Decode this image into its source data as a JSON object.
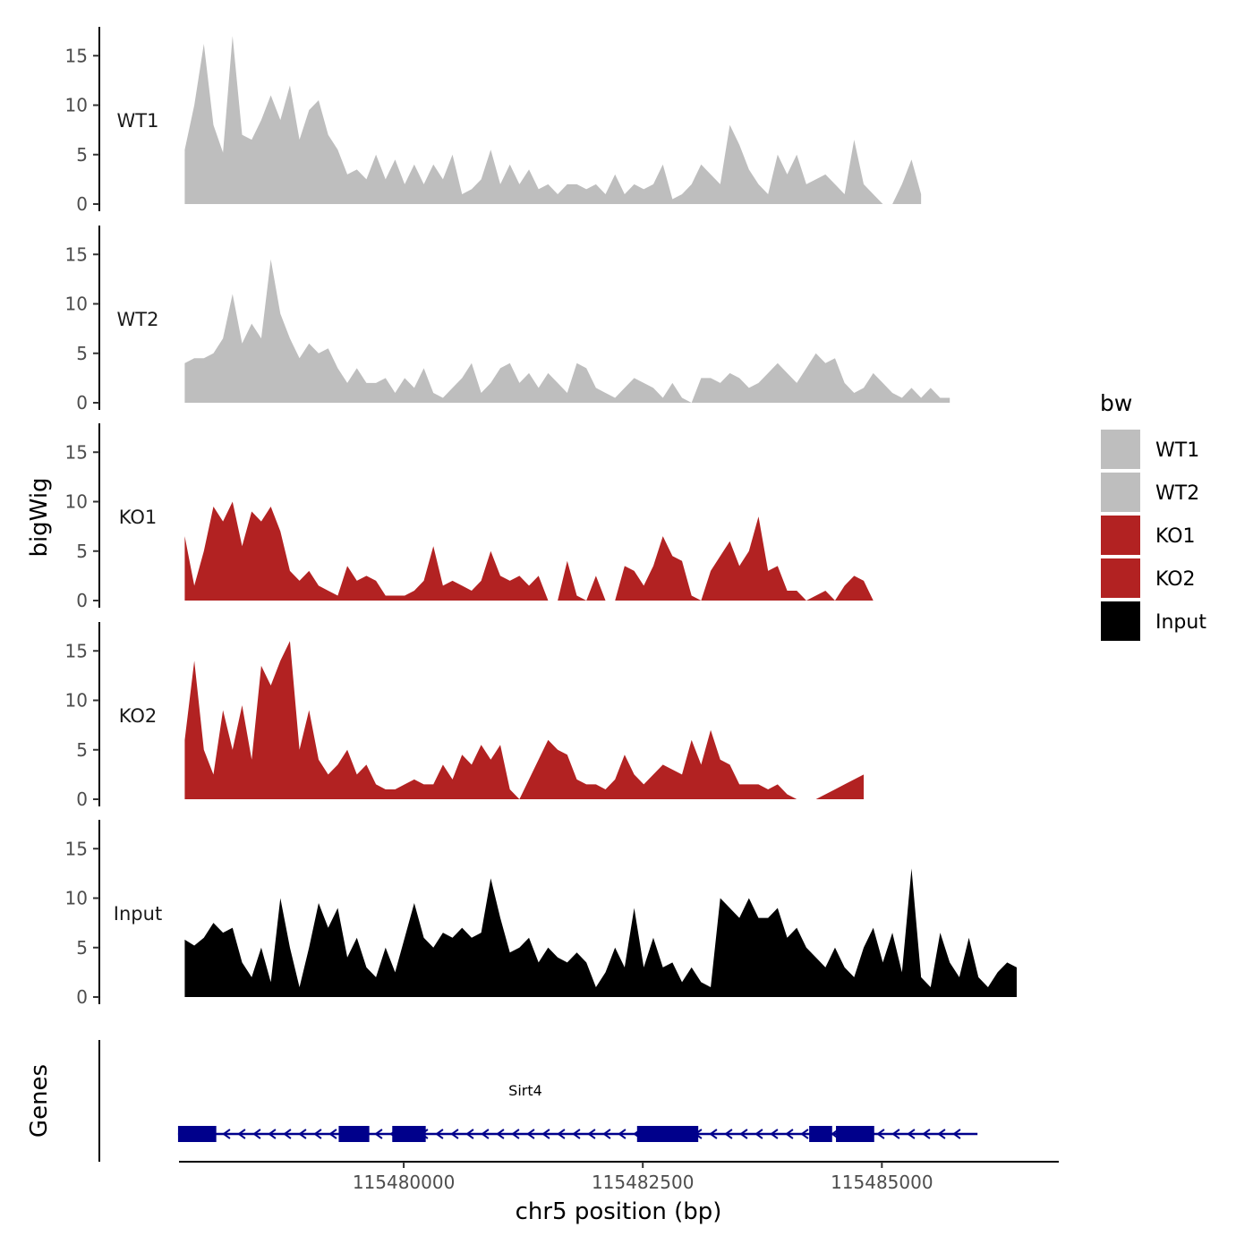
{
  "chart_data": {
    "type": "area",
    "ylabel": "bigWig",
    "xlabel": "chr5 position (bp)",
    "genes_panel_label": "Genes",
    "xlim": [
      115477650,
      115486850
    ],
    "xticks": [
      {
        "value": 115480000,
        "label": "115480000"
      },
      {
        "value": 115482500,
        "label": "115482500"
      },
      {
        "value": 115485000,
        "label": "115485000"
      }
    ],
    "ylim": [
      0,
      18
    ],
    "yticks": [
      {
        "value": 0,
        "label": "0"
      },
      {
        "value": 5,
        "label": "5"
      },
      {
        "value": 10,
        "label": "10"
      },
      {
        "value": 15,
        "label": "15"
      }
    ],
    "x_start": 115477710,
    "x_step": 100,
    "series": [
      {
        "name": "WT1",
        "color": "#bebebe",
        "values": [
          5.5,
          10,
          16.2,
          8,
          5.2,
          17,
          7,
          6.5,
          8.5,
          11,
          8.5,
          12,
          6.5,
          9.5,
          10.5,
          7,
          5.5,
          3,
          3.5,
          2.5,
          5,
          2.5,
          4.5,
          2,
          4,
          2,
          4,
          2.5,
          5,
          1,
          1.5,
          2.5,
          5.5,
          2,
          4,
          2,
          3.5,
          1.5,
          2,
          1,
          2,
          2,
          1.5,
          2,
          1,
          3,
          1,
          2,
          1.5,
          2,
          4,
          0.5,
          1,
          2,
          4,
          3,
          2,
          8,
          6,
          3.5,
          2,
          1,
          5,
          3,
          5,
          2,
          2.5,
          3,
          2,
          1,
          6.5,
          2,
          1,
          0,
          0,
          2,
          4.5,
          1
        ]
      },
      {
        "name": "WT2",
        "color": "#bebebe",
        "values": [
          4,
          4.5,
          4.5,
          5,
          6.5,
          11,
          6,
          8,
          6.5,
          14.5,
          9,
          6.5,
          4.5,
          6,
          5,
          5.5,
          3.5,
          2,
          3.5,
          2,
          2,
          2.5,
          1,
          2.5,
          1.5,
          3.5,
          1,
          0.5,
          1.5,
          2.5,
          4,
          1,
          2,
          3.5,
          4,
          2,
          3,
          1.5,
          3,
          2,
          1,
          4,
          3.5,
          1.5,
          1,
          0.5,
          1.5,
          2.5,
          2,
          1.5,
          0.5,
          2,
          0.5,
          0,
          2.5,
          2.5,
          2,
          3,
          2.5,
          1.5,
          2,
          3,
          4,
          3,
          2,
          3.5,
          5,
          4,
          4.5,
          2,
          1,
          1.5,
          3,
          2,
          1,
          0.5,
          1.5,
          0.5,
          1.5,
          0.5,
          0.5
        ]
      },
      {
        "name": "KO1",
        "color": "#b22222",
        "values": [
          6.5,
          1.5,
          5,
          9.5,
          8,
          10,
          5.5,
          9,
          8,
          9.5,
          7,
          3,
          2,
          3,
          1.5,
          1,
          0.5,
          3.5,
          2,
          2.5,
          2,
          0.5,
          0.5,
          0.5,
          1,
          2,
          5.5,
          1.5,
          2,
          1.5,
          1,
          2,
          5,
          2.5,
          2,
          2.5,
          1.5,
          2.5,
          0,
          0,
          4,
          0.5,
          0,
          2.5,
          0,
          0,
          3.5,
          3,
          1.5,
          3.5,
          6.5,
          4.5,
          4,
          0.5,
          0,
          3,
          4.5,
          6,
          3.5,
          5,
          8.5,
          3,
          3.5,
          1,
          1,
          0,
          0.5,
          1,
          0,
          1.5,
          2.5,
          2,
          0,
          0,
          0,
          0
        ]
      },
      {
        "name": "KO2",
        "color": "#b22222",
        "values": [
          6,
          14,
          5,
          2.5,
          9,
          5,
          9.5,
          4,
          13.5,
          11.5,
          14,
          16,
          5,
          9,
          4,
          2.5,
          3.5,
          5,
          2.5,
          3.5,
          1.5,
          1,
          1,
          1.5,
          2,
          1.5,
          1.5,
          3.5,
          2,
          4.5,
          3.5,
          5.5,
          4,
          5.5,
          1,
          0,
          2,
          4,
          6,
          5,
          4.5,
          2,
          1.5,
          1.5,
          1,
          2,
          4.5,
          2.5,
          1.5,
          2.5,
          3.5,
          3,
          2.5,
          6,
          3.5,
          7,
          4,
          3.5,
          1.5,
          1.5,
          1.5,
          1,
          1.5,
          0.5,
          0,
          0,
          0,
          0.5,
          1,
          1.5,
          2,
          2.5
        ]
      },
      {
        "name": "Input",
        "color": "#000000",
        "values": [
          5.8,
          5.2,
          6,
          7.5,
          6.5,
          7,
          3.5,
          2,
          5,
          1.5,
          10,
          5,
          1,
          5,
          9.5,
          7,
          9,
          4,
          6,
          3,
          2,
          5,
          2.5,
          6,
          9.5,
          6,
          5,
          6.5,
          6,
          7,
          6,
          6.5,
          12,
          8,
          4.5,
          5,
          6,
          3.5,
          5,
          4,
          3.5,
          4.5,
          3.5,
          1,
          2.5,
          5,
          3,
          9,
          3,
          6,
          3,
          3.5,
          1.5,
          3,
          1.5,
          1,
          10,
          9,
          8,
          10,
          8,
          8,
          9,
          6,
          7,
          5,
          4,
          3,
          5,
          3,
          2,
          5,
          7,
          3.5,
          6.5,
          2.5,
          13,
          2,
          1,
          6.5,
          3.5,
          2,
          6,
          2,
          1,
          2.5,
          3.5,
          3
        ]
      }
    ],
    "legend": {
      "title": "bw",
      "position": "right",
      "entries": [
        {
          "label": "WT1",
          "color": "#bebebe"
        },
        {
          "label": "WT2",
          "color": "#bebebe"
        },
        {
          "label": "KO1",
          "color": "#b22222"
        },
        {
          "label": "KO2",
          "color": "#b22222"
        },
        {
          "label": "Input",
          "color": "#000000"
        }
      ]
    },
    "gene": {
      "name": "Sirt4",
      "strand": "-",
      "color": "#00008b",
      "start": 115477640,
      "end": 115486000,
      "exons": [
        [
          115477640,
          115478040
        ],
        [
          115479320,
          115479640
        ],
        [
          115479880,
          115480230
        ],
        [
          115482440,
          115483080
        ],
        [
          115484240,
          115484480
        ],
        [
          115484520,
          115484920
        ]
      ]
    }
  }
}
